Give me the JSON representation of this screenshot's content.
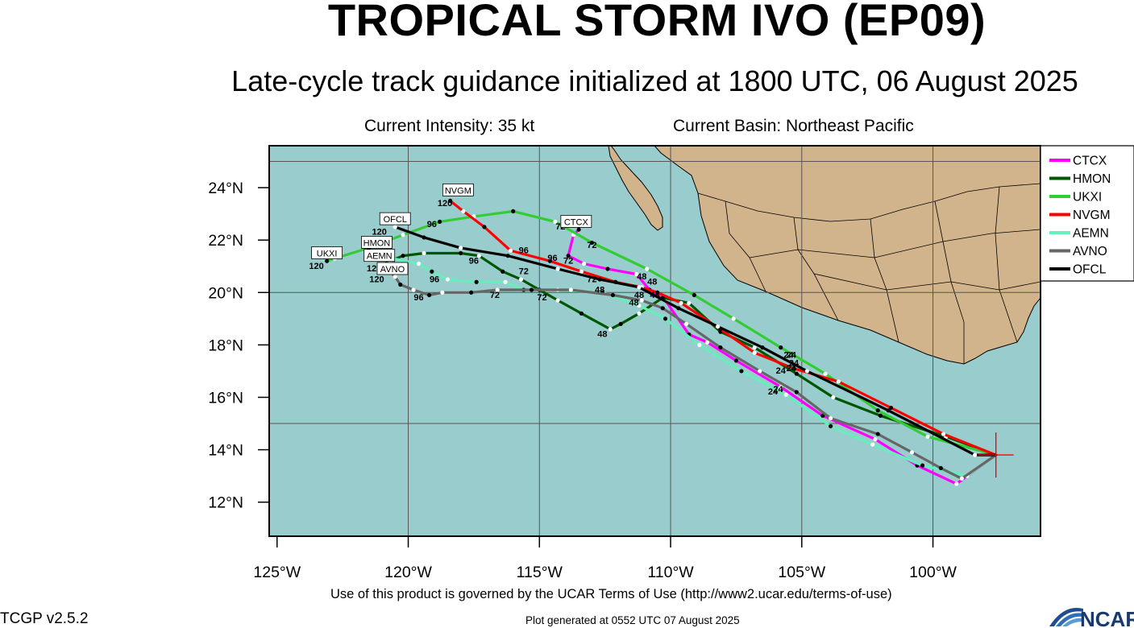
{
  "title": "TROPICAL STORM IVO (EP09)",
  "subtitle": "Late-cycle track guidance initialized at 1800 UTC, 06 August 2025",
  "current_intensity": "Current Intensity: 35 kt",
  "current_basin": "Current Basin: Northeast Pacific",
  "terms": "Use of this product is governed by the UCAR Terms of Use (http://www2.ucar.edu/terms-of-use)",
  "version": "TCGP v2.5.2",
  "generated": "Plot generated at 0552 UTC   07 August 2025",
  "logo_text": "NCAR",
  "colors": {
    "ocean": "#99cdcd",
    "land": "#d2b48c",
    "border": "#000000"
  },
  "axes": {
    "lon_range": [
      125.3,
      95.9
    ],
    "lat_range": [
      10.7,
      25.6
    ],
    "lon_ticks": [
      {
        "v": 125,
        "label": "125°W"
      },
      {
        "v": 120,
        "label": "120°W"
      },
      {
        "v": 115,
        "label": "115°W"
      },
      {
        "v": 110,
        "label": "110°W"
      },
      {
        "v": 105,
        "label": "105°W"
      },
      {
        "v": 100,
        "label": "100°W"
      }
    ],
    "lat_ticks": [
      {
        "v": 24,
        "label": "24°N"
      },
      {
        "v": 22,
        "label": "22°N"
      },
      {
        "v": 20,
        "label": "20°N"
      },
      {
        "v": 18,
        "label": "18°N"
      },
      {
        "v": 16,
        "label": "16°N"
      },
      {
        "v": 14,
        "label": "14°N"
      },
      {
        "v": 12,
        "label": "12°N"
      }
    ],
    "grid_lon": [
      120,
      115,
      110,
      105,
      100
    ],
    "grid_lat": [
      25,
      20,
      15
    ]
  },
  "initial_position": {
    "lon": 97.6,
    "lat": 13.8
  },
  "tracks": [
    {
      "name": "CTCX",
      "color": "#ff00ff",
      "points": [
        [
          97.6,
          13.8
        ],
        [
          99.1,
          12.7
        ],
        [
          100.6,
          13.4
        ],
        [
          102.2,
          14.4
        ],
        [
          104.2,
          15.3
        ],
        [
          105.8,
          16.4
        ],
        [
          107.5,
          17.4
        ],
        [
          108.6,
          18.1
        ],
        [
          109.3,
          18.4
        ],
        [
          110.2,
          19.7
        ],
        [
          110.8,
          20.1
        ],
        [
          111.3,
          20.7
        ],
        [
          112.4,
          20.9
        ],
        [
          113.3,
          21.1
        ],
        [
          113.9,
          21.4
        ],
        [
          113.7,
          22.2
        ],
        [
          113.5,
          22.4
        ]
      ],
      "labels": [
        {
          "text": "24",
          "lon": 105.9,
          "lat": 16.2
        },
        {
          "text": "48",
          "lon": 111.1,
          "lat": 20.5
        },
        {
          "text": "72",
          "lon": 114.2,
          "lat": 22.4
        }
      ],
      "tag": {
        "lon": 113.6,
        "lat": 22.7
      }
    },
    {
      "name": "HMON",
      "color": "#005500",
      "points": [
        [
          97.6,
          13.8
        ],
        [
          99.5,
          14.5
        ],
        [
          102.0,
          15.3
        ],
        [
          103.8,
          16.0
        ],
        [
          105.2,
          16.9
        ],
        [
          106.8,
          17.9
        ],
        [
          108.1,
          18.5
        ],
        [
          109.3,
          19.6
        ],
        [
          110.3,
          19.8
        ],
        [
          111.2,
          19.2
        ],
        [
          111.9,
          18.8
        ],
        [
          112.3,
          18.6
        ],
        [
          113.4,
          19.2
        ],
        [
          114.3,
          19.7
        ],
        [
          115.0,
          20.1
        ],
        [
          115.7,
          20.5
        ],
        [
          116.4,
          20.8
        ],
        [
          117.3,
          21.4
        ],
        [
          118.0,
          21.5
        ],
        [
          119.4,
          21.5
        ],
        [
          120.2,
          21.4
        ],
        [
          120.7,
          21.2
        ],
        [
          121.1,
          21.0
        ]
      ],
      "labels": [
        {
          "text": "24",
          "lon": 105.4,
          "lat": 17.0
        },
        {
          "text": "48",
          "lon": 112.6,
          "lat": 18.3
        },
        {
          "text": "72",
          "lon": 115.6,
          "lat": 20.7
        },
        {
          "text": "96",
          "lon": 117.5,
          "lat": 21.1
        },
        {
          "text": "120",
          "lon": 121.3,
          "lat": 21.3
        }
      ],
      "tag": {
        "lon": 121.2,
        "lat": 21.9
      }
    },
    {
      "name": "UKXI",
      "color": "#33cc33",
      "points": [
        [
          97.6,
          13.8
        ],
        [
          100.2,
          14.5
        ],
        [
          102.1,
          15.5
        ],
        [
          104.1,
          16.9
        ],
        [
          105.8,
          17.9
        ],
        [
          107.6,
          19.0
        ],
        [
          109.1,
          19.9
        ],
        [
          110.9,
          20.9
        ],
        [
          113.0,
          21.9
        ],
        [
          114.4,
          22.7
        ],
        [
          116.0,
          23.1
        ],
        [
          117.5,
          22.9
        ],
        [
          118.8,
          22.7
        ],
        [
          120.2,
          22.2
        ],
        [
          121.5,
          21.7
        ],
        [
          122.8,
          21.3
        ],
        [
          123.1,
          21.2
        ]
      ],
      "labels": [
        {
          "text": "24",
          "lon": 105.5,
          "lat": 17.5
        },
        {
          "text": "48",
          "lon": 110.7,
          "lat": 20.3
        },
        {
          "text": "72",
          "lon": 113.0,
          "lat": 21.7
        },
        {
          "text": "96",
          "lon": 119.1,
          "lat": 22.5
        },
        {
          "text": "120",
          "lon": 123.5,
          "lat": 20.9
        }
      ],
      "tag": {
        "lon": 123.1,
        "lat": 21.5
      }
    },
    {
      "name": "NVGM",
      "color": "#ff0000",
      "points": [
        [
          97.6,
          13.8
        ],
        [
          99.6,
          14.6
        ],
        [
          101.6,
          15.6
        ],
        [
          103.6,
          16.6
        ],
        [
          105.3,
          17.1
        ],
        [
          106.8,
          17.7
        ],
        [
          108.1,
          18.6
        ],
        [
          109.6,
          19.6
        ],
        [
          110.5,
          20.0
        ],
        [
          111.1,
          20.2
        ],
        [
          112.1,
          20.4
        ],
        [
          113.4,
          20.8
        ],
        [
          114.6,
          21.2
        ],
        [
          116.1,
          21.6
        ],
        [
          117.1,
          22.5
        ],
        [
          117.9,
          23.1
        ],
        [
          118.4,
          23.5
        ]
      ],
      "labels": [
        {
          "text": "24",
          "lon": 105.4,
          "lat": 17.5
        },
        {
          "text": "48",
          "lon": 110.6,
          "lat": 19.8
        },
        {
          "text": "72",
          "lon": 113.9,
          "lat": 21.1
        },
        {
          "text": "96",
          "lon": 115.6,
          "lat": 21.5
        },
        {
          "text": "120",
          "lon": 118.6,
          "lat": 23.3
        }
      ],
      "tag": {
        "lon": 118.1,
        "lat": 23.9
      }
    },
    {
      "name": "AEMN",
      "color": "#66eebb",
      "points": [
        [
          97.6,
          13.8
        ],
        [
          98.7,
          13.0
        ],
        [
          100.4,
          13.4
        ],
        [
          102.3,
          14.2
        ],
        [
          103.9,
          14.9
        ],
        [
          105.6,
          16.1
        ],
        [
          107.3,
          17.0
        ],
        [
          108.9,
          18.0
        ],
        [
          110.2,
          19.0
        ],
        [
          111.2,
          19.5
        ],
        [
          112.6,
          20.0
        ],
        [
          114.3,
          20.1
        ],
        [
          115.6,
          20.1
        ],
        [
          116.3,
          20.4
        ],
        [
          117.4,
          20.4
        ],
        [
          118.5,
          20.5
        ],
        [
          119.1,
          20.8
        ],
        [
          119.6,
          21.1
        ],
        [
          120.6,
          21.3
        ],
        [
          121.1,
          21.3
        ]
      ],
      "labels": [
        {
          "text": "24",
          "lon": 106.1,
          "lat": 16.1
        },
        {
          "text": "48",
          "lon": 111.4,
          "lat": 19.5
        },
        {
          "text": "72",
          "lon": 114.9,
          "lat": 19.7
        },
        {
          "text": "96",
          "lon": 119.0,
          "lat": 20.4
        },
        {
          "text": "120",
          "lon": 121.3,
          "lat": 20.8
        }
      ],
      "tag": {
        "lon": 121.1,
        "lat": 21.4
      }
    },
    {
      "name": "AVNO",
      "color": "#666666",
      "points": [
        [
          97.6,
          13.8
        ],
        [
          98.9,
          12.9
        ],
        [
          99.7,
          13.3
        ],
        [
          100.8,
          13.9
        ],
        [
          102.1,
          14.6
        ],
        [
          103.9,
          15.2
        ],
        [
          105.2,
          16.2
        ],
        [
          106.6,
          17.0
        ],
        [
          108.1,
          17.9
        ],
        [
          109.4,
          18.8
        ],
        [
          110.3,
          19.4
        ],
        [
          111.1,
          19.7
        ],
        [
          112.2,
          19.9
        ],
        [
          113.8,
          20.1
        ],
        [
          115.3,
          20.1
        ],
        [
          116.6,
          20.1
        ],
        [
          117.6,
          20.0
        ],
        [
          118.7,
          20.0
        ],
        [
          119.2,
          19.9
        ],
        [
          119.8,
          20.1
        ],
        [
          120.3,
          20.3
        ],
        [
          120.5,
          20.6
        ],
        [
          120.7,
          20.8
        ]
      ],
      "labels": [
        {
          "text": "24",
          "lon": 105.8,
          "lat": 16.9
        },
        {
          "text": "48",
          "lon": 111.2,
          "lat": 19.8
        },
        {
          "text": "72",
          "lon": 116.7,
          "lat": 19.8
        },
        {
          "text": "96",
          "lon": 119.6,
          "lat": 19.7
        },
        {
          "text": "120",
          "lon": 121.2,
          "lat": 20.4
        }
      ],
      "tag": {
        "lon": 120.6,
        "lat": 20.9
      }
    },
    {
      "name": "OFCL",
      "color": "#000000",
      "points": [
        [
          97.6,
          13.8
        ],
        [
          98.4,
          13.8
        ],
        [
          101.7,
          15.5
        ],
        [
          104.8,
          17.0
        ],
        [
          106.5,
          17.9
        ],
        [
          108.2,
          18.7
        ],
        [
          109.7,
          19.4
        ],
        [
          111.2,
          20.2
        ],
        [
          112.7,
          20.5
        ],
        [
          114.3,
          20.9
        ],
        [
          116.2,
          21.4
        ],
        [
          118.0,
          21.7
        ],
        [
          119.4,
          22.1
        ],
        [
          120.5,
          22.5
        ]
      ],
      "labels": [
        {
          "text": "24",
          "lon": 105.3,
          "lat": 17.2
        },
        {
          "text": "48",
          "lon": 112.7,
          "lat": 20.0
        },
        {
          "text": "72",
          "lon": 113.0,
          "lat": 20.4
        },
        {
          "text": "96",
          "lon": 114.5,
          "lat": 21.2
        },
        {
          "text": "120",
          "lon": 121.1,
          "lat": 22.2
        }
      ],
      "tag": {
        "lon": 120.5,
        "lat": 22.8
      }
    }
  ]
}
